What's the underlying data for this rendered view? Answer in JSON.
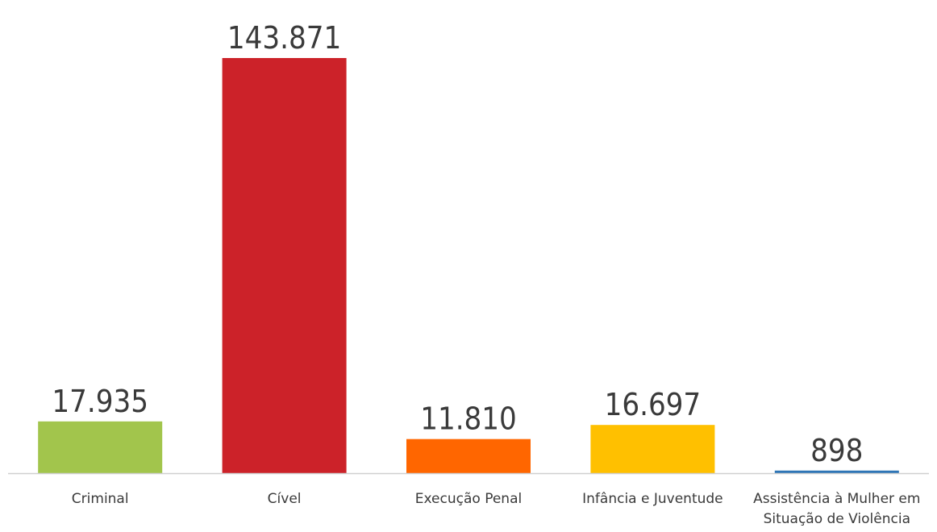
{
  "chart_data": {
    "type": "bar",
    "categories": [
      "Criminal",
      "Cível",
      "Execução Penal",
      "Infância e Juventude",
      "Assistência à Mulher em Situação de Violência"
    ],
    "category_lines": [
      [
        "Criminal"
      ],
      [
        "Cível"
      ],
      [
        "Execução Penal"
      ],
      [
        "Infância e Juventude"
      ],
      [
        "Assistência à Mulher em",
        "Situação de Violência"
      ]
    ],
    "values": [
      17935,
      143871,
      11810,
      16697,
      898
    ],
    "value_labels": [
      "17.935",
      "143.871",
      "11.810",
      "16.697",
      "898"
    ],
    "colors": [
      "#a2c54c",
      "#cc2229",
      "#ff6600",
      "#ffc000",
      "#2e75b6"
    ],
    "ylim": [
      0,
      143871
    ],
    "grid": false,
    "legend": "none"
  }
}
